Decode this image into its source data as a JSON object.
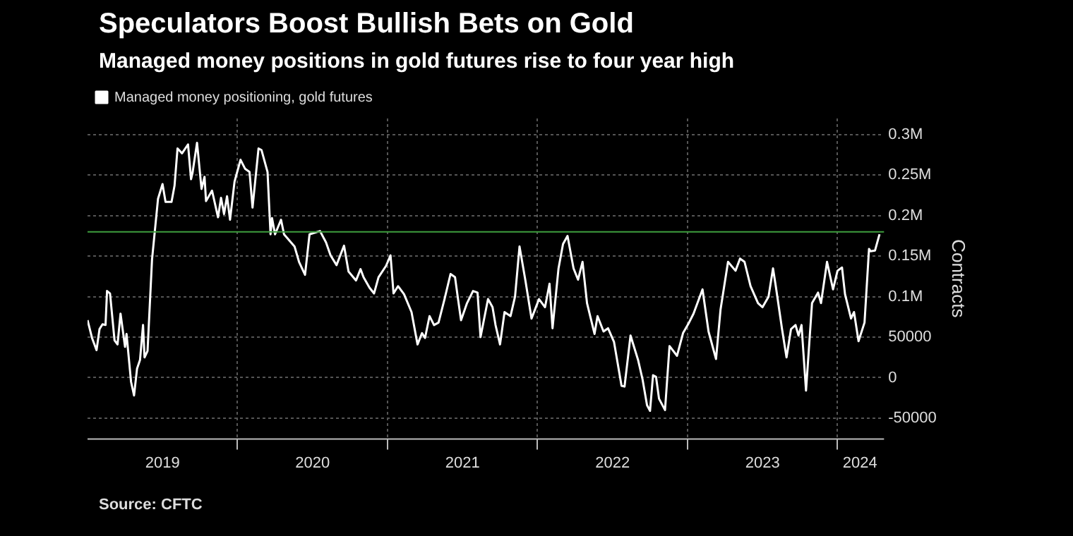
{
  "chart_data": {
    "type": "line",
    "title": "Speculators Boost Bullish Bets on Gold",
    "subtitle": "Managed money positions in gold futures rise to four year high",
    "ylabel": "Contracts",
    "annotations": [
      "Source: CFTC"
    ],
    "x": [
      2019.0,
      2019.03,
      2019.06,
      2019.08,
      2019.1,
      2019.12,
      2019.13,
      2019.15,
      2019.18,
      2019.2,
      2019.22,
      2019.25,
      2019.26,
      2019.29,
      2019.31,
      2019.33,
      2019.35,
      2019.37,
      2019.38,
      2019.4,
      2019.43,
      2019.47,
      2019.5,
      2019.52,
      2019.56,
      2019.58,
      2019.6,
      2019.63,
      2019.67,
      2019.69,
      2019.7,
      2019.73,
      2019.76,
      2019.78,
      2019.79,
      2019.83,
      2019.87,
      2019.89,
      2019.91,
      2019.93,
      2019.95,
      2019.98,
      2020.02,
      2020.05,
      2020.08,
      2020.1,
      2020.14,
      2020.16,
      2020.2,
      2020.22,
      2020.23,
      2020.25,
      2020.29,
      2020.31,
      2020.38,
      2020.41,
      2020.45,
      2020.48,
      2020.55,
      2020.59,
      2020.62,
      2020.66,
      2020.71,
      2020.74,
      2020.79,
      2020.82,
      2020.84,
      2020.88,
      2020.91,
      2020.94,
      2020.99,
      2021.02,
      2021.04,
      2021.07,
      2021.11,
      2021.16,
      2021.2,
      2021.23,
      2021.25,
      2021.28,
      2021.31,
      2021.34,
      2021.38,
      2021.42,
      2021.45,
      2021.47,
      2021.49,
      2021.53,
      2021.57,
      2021.6,
      2021.62,
      2021.67,
      2021.7,
      2021.72,
      2021.75,
      2021.78,
      2021.82,
      2021.85,
      2021.88,
      2021.92,
      2021.96,
      2022.01,
      2022.05,
      2022.08,
      2022.1,
      2022.14,
      2022.17,
      2022.2,
      2022.24,
      2022.27,
      2022.3,
      2022.33,
      2022.38,
      2022.4,
      2022.44,
      2022.47,
      2022.51,
      2022.56,
      2022.58,
      2022.62,
      2022.67,
      2022.7,
      2022.73,
      2022.75,
      2022.77,
      2022.79,
      2022.81,
      2022.85,
      2022.88,
      2022.93,
      2022.97,
      2023.01,
      2023.04,
      2023.1,
      2023.14,
      2023.19,
      2023.22,
      2023.27,
      2023.32,
      2023.35,
      2023.38,
      2023.42,
      2023.47,
      2023.5,
      2023.54,
      2023.57,
      2023.59,
      2023.63,
      2023.66,
      2023.69,
      2023.72,
      2023.74,
      2023.76,
      2023.79,
      2023.83,
      2023.87,
      2023.89,
      2023.93,
      2023.97,
      2024.0,
      2024.03,
      2024.05,
      2024.09,
      2024.11,
      2024.14,
      2024.18,
      2024.21,
      2024.22,
      2024.25,
      2024.28
    ],
    "series": [
      {
        "name": "Managed money positioning, gold futures",
        "color": "#ffffff",
        "values": [
          71000,
          49000,
          34000,
          60000,
          66000,
          65000,
          107000,
          104000,
          46000,
          41000,
          79000,
          38000,
          54000,
          -5000,
          -22000,
          11000,
          22000,
          65000,
          25000,
          33000,
          146000,
          221000,
          239000,
          217000,
          217000,
          237000,
          283000,
          277000,
          288000,
          245000,
          253000,
          290000,
          233000,
          248000,
          218000,
          231000,
          198000,
          222000,
          202000,
          224000,
          195000,
          242000,
          269000,
          258000,
          254000,
          210000,
          283000,
          281000,
          254000,
          177000,
          197000,
          177000,
          195000,
          177000,
          162000,
          143000,
          127000,
          177000,
          181000,
          167000,
          151000,
          139000,
          163000,
          131000,
          120000,
          134000,
          124000,
          111000,
          104000,
          124000,
          138000,
          151000,
          104000,
          113000,
          103000,
          81000,
          41000,
          55000,
          49000,
          76000,
          65000,
          68000,
          97000,
          128000,
          124000,
          97000,
          71000,
          92000,
          107000,
          105000,
          50000,
          97000,
          87000,
          65000,
          41000,
          81000,
          76000,
          100000,
          162000,
          119000,
          73000,
          97000,
          87000,
          116000,
          61000,
          135000,
          165000,
          175000,
          135000,
          121000,
          143000,
          92000,
          54000,
          76000,
          57000,
          61000,
          44000,
          -10000,
          -11000,
          52000,
          22000,
          -2000,
          -34000,
          -41000,
          3000,
          1000,
          -26000,
          -40000,
          39000,
          27000,
          55000,
          68000,
          79000,
          109000,
          57000,
          23000,
          84000,
          143000,
          132000,
          147000,
          143000,
          113000,
          92000,
          87000,
          100000,
          135000,
          111000,
          60000,
          25000,
          60000,
          65000,
          52000,
          65000,
          -16000,
          92000,
          105000,
          92000,
          143000,
          109000,
          132000,
          136000,
          103000,
          73000,
          81000,
          45000,
          68000,
          159000,
          156000,
          157000,
          177000
        ]
      }
    ],
    "xlim": [
      2019.0,
      2024.31
    ],
    "xticks": [
      {
        "value": 2019.5,
        "label": "2019"
      },
      {
        "value": 2020,
        "label": null
      },
      {
        "value": 2020.5,
        "label": "2020"
      },
      {
        "value": 2021,
        "label": null
      },
      {
        "value": 2021.5,
        "label": "2021"
      },
      {
        "value": 2022,
        "label": null
      },
      {
        "value": 2022.5,
        "label": "2022"
      },
      {
        "value": 2023,
        "label": null
      },
      {
        "value": 2023.5,
        "label": "2023"
      },
      {
        "value": 2024,
        "label": null
      },
      {
        "value": 2024.15,
        "label": "2024"
      }
    ],
    "ylim": [
      -75000,
      320000
    ],
    "yticks": [
      -50000,
      0,
      50000,
      {
        "value": 100000,
        "label": "0.1M"
      },
      {
        "value": 150000,
        "label": "0.15M"
      },
      {
        "value": 200000,
        "label": "0.2M"
      },
      {
        "value": 250000,
        "label": "0.25M"
      },
      {
        "value": 300000,
        "label": "0.3M"
      }
    ],
    "ref_lines": [
      {
        "axis": "y",
        "value": 180000,
        "color": "#3e9e3e"
      }
    ],
    "grid": true,
    "legend": "top left",
    "marker": "none",
    "line_style": "solid"
  }
}
